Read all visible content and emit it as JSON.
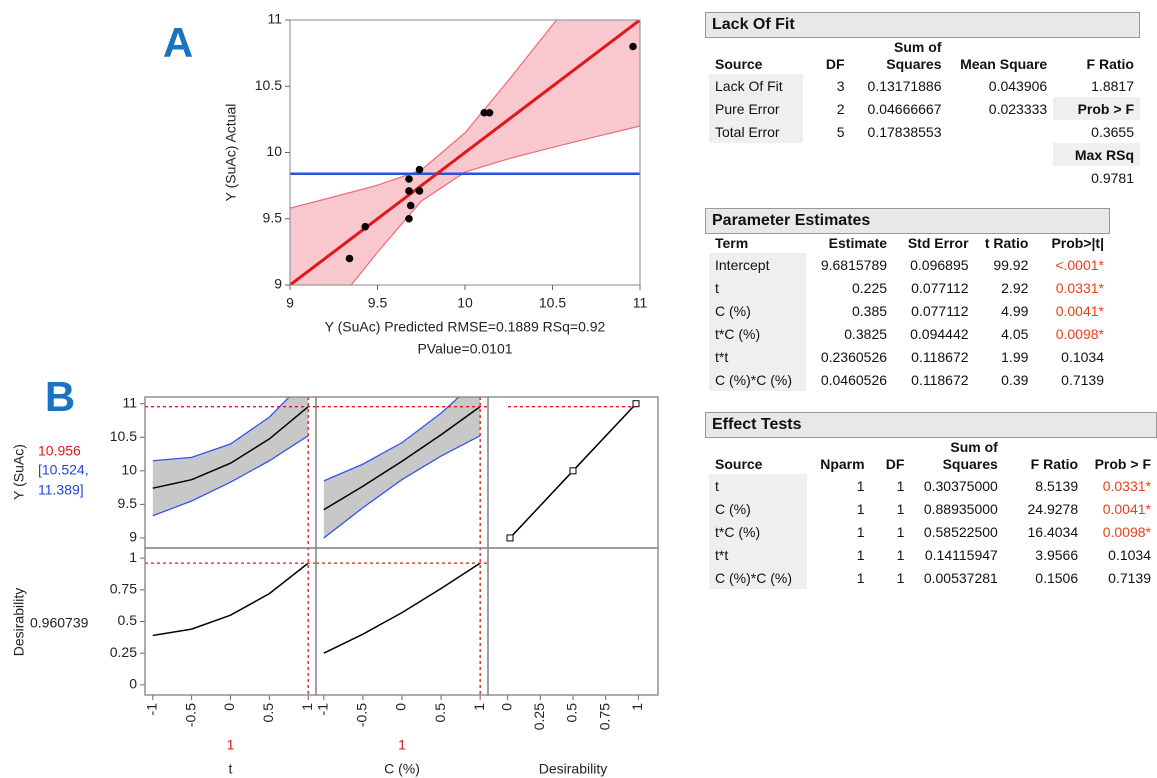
{
  "chart_data": [
    {
      "type": "scatter",
      "panel_label": "A",
      "y_label": "Y (SuAc) Actual",
      "x_label": "Y (SuAc) Predicted RMSE=0.1889 RSq=0.92",
      "x_label_2": "PValue=0.0101",
      "xlim": [
        9,
        11
      ],
      "ylim": [
        9,
        11
      ],
      "xticks": [
        9,
        9.5,
        10,
        10.5,
        11
      ],
      "yticks": [
        9,
        9.5,
        10,
        10.5,
        11
      ],
      "points": {
        "color": "#000000",
        "x": [
          9.34,
          9.43,
          9.68,
          9.69,
          9.68,
          9.74,
          9.68,
          9.74,
          10.11,
          10.14,
          10.96
        ],
        "y": [
          9.2,
          9.44,
          9.5,
          9.6,
          9.71,
          9.71,
          9.8,
          9.87,
          10.3,
          10.3,
          10.8
        ]
      },
      "fit_line": {
        "color": "#e01818",
        "x": [
          9,
          11
        ],
        "y": [
          9,
          11
        ]
      },
      "band": {
        "color": "#f9c8cf",
        "edge_color": "#f06a7a",
        "x": [
          9,
          9.25,
          9.5,
          9.75,
          10,
          10.25,
          10.5,
          10.75,
          11
        ],
        "lower": [
          8.42,
          8.835,
          9.247,
          9.633,
          9.852,
          9.953,
          10.038,
          10.12,
          10.2
        ],
        "upper": [
          9.58,
          9.665,
          9.753,
          9.867,
          10.148,
          10.547,
          10.962,
          11.38,
          11.8
        ]
      },
      "mean": {
        "color": "#2255dd",
        "value": 9.84
      }
    },
    {
      "type": "profiler",
      "panel_label": "B",
      "response": {
        "name": "Y (SuAc)",
        "current": 10.956,
        "current_color": "#e01818",
        "interval": [
          10.524,
          11.389
        ],
        "interval_labels": [
          "[10.524,",
          "11.389]"
        ],
        "interval_color": "#2244dd",
        "ylim": [
          8.85,
          11.1
        ],
        "yticks": [
          9,
          9.5,
          10,
          10.5,
          11
        ]
      },
      "desirability": {
        "name": "Desirability",
        "current": 0.960739,
        "ylim": [
          -0.08,
          1.08
        ],
        "yticks": [
          0,
          0.25,
          0.5,
          0.75,
          1
        ]
      },
      "xlim": [
        -1.1,
        1.1
      ],
      "xticks": [
        -1,
        -0.5,
        0,
        0.5,
        1
      ],
      "factors": [
        {
          "name": "t",
          "current": 1,
          "x": [
            -1,
            -0.5,
            0,
            0.5,
            1
          ],
          "response": [
            9.741,
            9.868,
            10.113,
            10.475,
            10.956
          ],
          "lower": [
            9.33,
            9.55,
            9.83,
            10.15,
            10.524
          ],
          "upper": [
            10.15,
            10.2,
            10.4,
            10.8,
            11.389
          ],
          "desirability": [
            0.39,
            0.44,
            0.55,
            0.72,
            0.960739
          ]
        },
        {
          "name": "C (%)",
          "current": 1,
          "x": [
            -1,
            -0.5,
            0,
            0.5,
            1
          ],
          "response": [
            9.421,
            9.77,
            10.143,
            10.538,
            10.956
          ],
          "lower": [
            9.0,
            9.45,
            9.87,
            10.22,
            10.524
          ],
          "upper": [
            9.85,
            10.1,
            10.42,
            10.86,
            11.389
          ],
          "desirability": [
            0.25,
            0.4,
            0.57,
            0.76,
            0.960739
          ]
        }
      ],
      "desirability_function": {
        "name": "Desirability",
        "x": [
          0.0183,
          0.5,
          0.9819
        ],
        "y": [
          9,
          10,
          11
        ],
        "xlim": [
          -0.15,
          1.15
        ],
        "xticks": [
          0,
          0.25,
          0.5,
          0.75,
          1
        ]
      },
      "band_color": "#c8c8c8",
      "band_edge_color": "#3355ee",
      "line_color": "#000000",
      "guide_color": "#e01818"
    }
  ],
  "significant_color": "#e8401c",
  "tables": [
    {
      "title": "Lack Of Fit",
      "columns": [
        "Source",
        "DF",
        "Sum of Squares",
        "Mean Square",
        "F Ratio"
      ],
      "rows": [
        [
          "Lack Of Fit",
          "3",
          "0.13171886",
          "0.043906",
          "1.8817"
        ],
        [
          "Pure Error",
          "2",
          "0.04666667",
          "0.023333",
          {
            "text": "Prob > F",
            "header": true
          }
        ],
        [
          "Total Error",
          "5",
          "0.17838553",
          null,
          "0.3655"
        ],
        [
          null,
          null,
          null,
          null,
          {
            "text": "Max RSq",
            "header": true
          }
        ],
        [
          null,
          null,
          null,
          null,
          "0.9781"
        ]
      ]
    },
    {
      "title": "Parameter Estimates",
      "columns": [
        "Term",
        "Estimate",
        "Std Error",
        "t Ratio",
        "Prob>|t|"
      ],
      "rows": [
        [
          "Intercept",
          "9.6815789",
          "0.096895",
          "99.92",
          "<.0001*"
        ],
        [
          "t",
          "0.225",
          "0.077112",
          "2.92",
          "0.0331*"
        ],
        [
          "C (%)",
          "0.385",
          "0.077112",
          "4.99",
          "0.0041*"
        ],
        [
          "t*C (%)",
          "0.3825",
          "0.094442",
          "4.05",
          "0.0098*"
        ],
        [
          "t*t",
          "0.2360526",
          "0.118672",
          "1.99",
          "0.1034"
        ],
        [
          "C (%)*C (%)",
          "0.0460526",
          "0.118672",
          "0.39",
          "0.7139"
        ]
      ]
    },
    {
      "title": "Effect Tests",
      "columns": [
        "Source",
        "Nparm",
        "DF",
        "Sum of Squares",
        "F Ratio",
        "Prob > F"
      ],
      "rows": [
        [
          "t",
          "1",
          "1",
          "0.30375000",
          "8.5139",
          "0.0331*"
        ],
        [
          "C (%)",
          "1",
          "1",
          "0.88935000",
          "24.9278",
          "0.0041*"
        ],
        [
          "t*C (%)",
          "1",
          "1",
          "0.58522500",
          "16.4034",
          "0.0098*"
        ],
        [
          "t*t",
          "1",
          "1",
          "0.14115947",
          "3.9566",
          "0.1034"
        ],
        [
          "C (%)*C (%)",
          "1",
          "1",
          "0.00537281",
          "0.1506",
          "0.7139"
        ]
      ]
    }
  ]
}
